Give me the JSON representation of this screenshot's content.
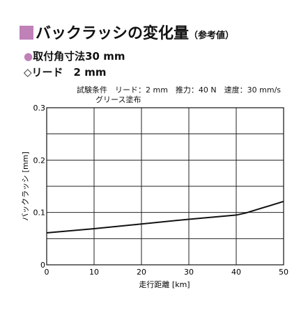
{
  "header": {
    "title": "バックラッシの変化量",
    "title_note": "（参考値）",
    "accent_color": "#c080b8"
  },
  "specs": {
    "mount_bullet": "●",
    "mount": "取付角寸法30 mm",
    "lead": "◇リード　2 mm"
  },
  "conditions": {
    "line1": "試験条件　リード：2 mm　推力：40 N　速度：30 mm/s",
    "line2": "グリース塗布"
  },
  "chart_data": {
    "type": "line",
    "xlabel": "走行距離 [km]",
    "ylabel": "バックラッシ [mm]",
    "x_ticks": [
      "0",
      "10",
      "20",
      "30",
      "40",
      "50"
    ],
    "y_ticks": [
      "0",
      "0.1",
      "0.2",
      "0.3"
    ],
    "xlim": [
      0,
      50
    ],
    "ylim": [
      0,
      0.3
    ],
    "grid": true,
    "series": [
      {
        "x": [
          0,
          10,
          20,
          30,
          40,
          42,
          50
        ],
        "y": [
          0.061,
          0.069,
          0.078,
          0.087,
          0.095,
          0.099,
          0.121
        ]
      }
    ]
  }
}
